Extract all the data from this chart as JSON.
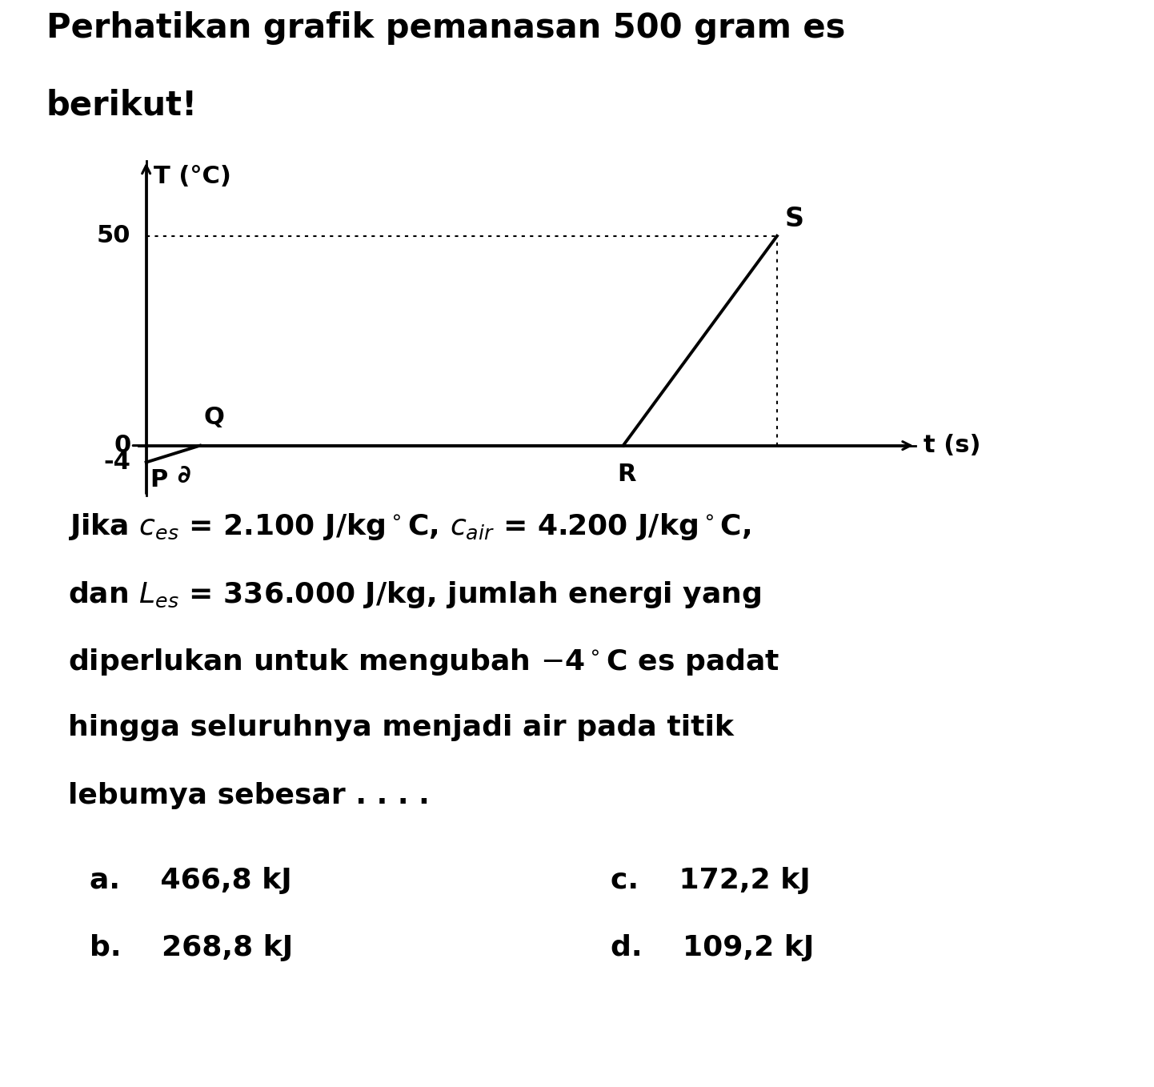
{
  "title_line1": "Perhatikan grafik pemanasan 500 gram es",
  "title_line2": "berikut!",
  "graph_ylabel": "T (°C)",
  "graph_xlabel": "t (s)",
  "point_P": {
    "label": "P",
    "t": 0.0,
    "T": -4
  },
  "point_Q": {
    "label": "Q",
    "t": 0.07,
    "T": 0
  },
  "point_R": {
    "label": "R",
    "t": 0.62,
    "T": 0
  },
  "point_S": {
    "label": "S",
    "t": 0.82,
    "T": 50
  },
  "y_tick_50": 50,
  "y_tick_0": 0,
  "y_tick_neg4": -4,
  "text_color": "#000000",
  "bg_color": "#ffffff",
  "line_color": "#000000",
  "title_fontsize": 30,
  "body_fontsize": 26,
  "graph_fontsize": 22
}
